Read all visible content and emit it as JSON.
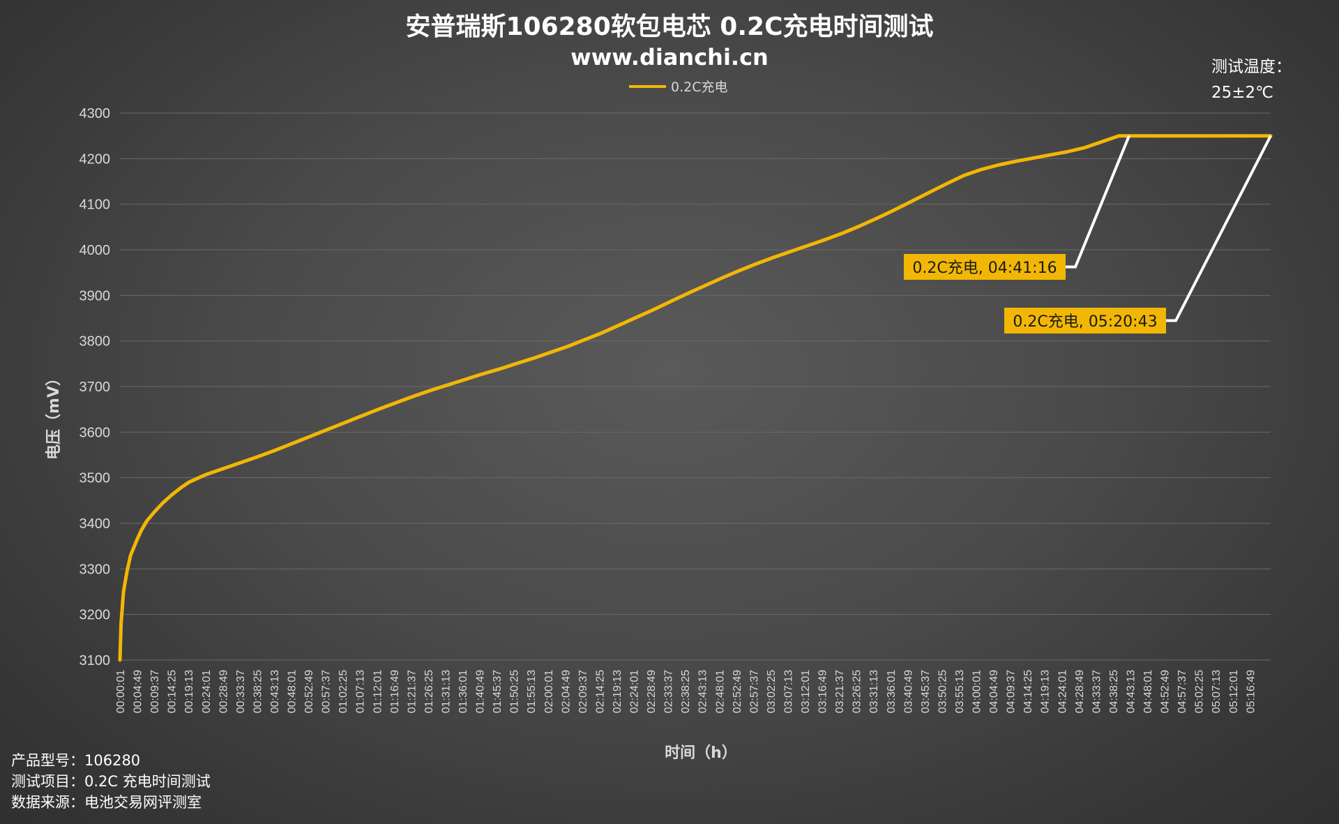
{
  "colors": {
    "series": "#f2b705",
    "leader": "#ffffff",
    "grid": "#6a6a6a",
    "annotation_bg": "#f2b705"
  },
  "chart_data": {
    "type": "line",
    "title": "安普瑞斯106280软包电芯 0.2C充电时间测试",
    "subtitle": "www.dianchi.cn",
    "xlabel": "时间（h）",
    "ylabel": "电压（mV）",
    "ylim": [
      3100,
      4300
    ],
    "yticks": [
      3100,
      3200,
      3300,
      3400,
      3500,
      3600,
      3700,
      3800,
      3900,
      4000,
      4100,
      4200,
      4300
    ],
    "grid": true,
    "legend_position": "top-center",
    "x_tick_labels": [
      "00:00:01",
      "00:04:49",
      "00:09:37",
      "00:14:25",
      "00:19:13",
      "00:24:01",
      "00:28:49",
      "00:33:37",
      "00:38:25",
      "00:43:13",
      "00:48:01",
      "00:52:49",
      "00:57:37",
      "01:02:25",
      "01:07:13",
      "01:12:01",
      "01:16:49",
      "01:21:37",
      "01:26:25",
      "01:31:13",
      "01:36:01",
      "01:40:49",
      "01:45:37",
      "01:50:25",
      "01:55:13",
      "02:00:01",
      "02:04:49",
      "02:09:37",
      "02:14:25",
      "02:19:13",
      "02:24:01",
      "02:28:49",
      "02:33:37",
      "02:38:25",
      "02:43:13",
      "02:48:01",
      "02:52:49",
      "02:57:37",
      "03:02:25",
      "03:07:13",
      "03:12:01",
      "03:16:49",
      "03:21:37",
      "03:26:25",
      "03:31:13",
      "03:36:01",
      "03:40:49",
      "03:45:37",
      "03:50:25",
      "03:55:13",
      "04:00:01",
      "04:04:49",
      "04:09:37",
      "04:14:25",
      "04:19:13",
      "04:24:01",
      "04:28:49",
      "04:33:37",
      "04:38:25",
      "04:43:13",
      "04:48:01",
      "04:52:49",
      "04:57:37",
      "05:02:25",
      "05:07:13",
      "05:12:01",
      "05:16:49"
    ],
    "series": [
      {
        "name": "0.2C充电",
        "points": [
          [
            "00:00:01",
            3100
          ],
          [
            "00:00:20",
            3180
          ],
          [
            "00:01:00",
            3250
          ],
          [
            "00:02:00",
            3295
          ],
          [
            "00:03:00",
            3330
          ],
          [
            "00:04:49",
            3365
          ],
          [
            "00:06:00",
            3385
          ],
          [
            "00:07:30",
            3405
          ],
          [
            "00:09:37",
            3425
          ],
          [
            "00:12:00",
            3445
          ],
          [
            "00:14:25",
            3462
          ],
          [
            "00:17:00",
            3478
          ],
          [
            "00:19:13",
            3490
          ],
          [
            "00:22:00",
            3500
          ],
          [
            "00:24:01",
            3507
          ],
          [
            "00:28:49",
            3520
          ],
          [
            "00:33:37",
            3533
          ],
          [
            "00:38:25",
            3546
          ],
          [
            "00:43:13",
            3560
          ],
          [
            "00:48:01",
            3575
          ],
          [
            "00:52:49",
            3590
          ],
          [
            "00:57:37",
            3605
          ],
          [
            "01:02:25",
            3620
          ],
          [
            "01:07:13",
            3635
          ],
          [
            "01:12:01",
            3650
          ],
          [
            "01:16:49",
            3664
          ],
          [
            "01:21:37",
            3678
          ],
          [
            "01:26:25",
            3691
          ],
          [
            "01:31:13",
            3703
          ],
          [
            "01:36:01",
            3715
          ],
          [
            "01:40:49",
            3727
          ],
          [
            "01:45:37",
            3738
          ],
          [
            "01:50:25",
            3750
          ],
          [
            "01:55:13",
            3762
          ],
          [
            "02:00:01",
            3775
          ],
          [
            "02:04:49",
            3788
          ],
          [
            "02:09:37",
            3803
          ],
          [
            "02:14:25",
            3818
          ],
          [
            "02:19:13",
            3835
          ],
          [
            "02:24:01",
            3852
          ],
          [
            "02:28:49",
            3869
          ],
          [
            "02:33:37",
            3887
          ],
          [
            "02:38:25",
            3905
          ],
          [
            "02:43:13",
            3922
          ],
          [
            "02:48:01",
            3939
          ],
          [
            "02:52:49",
            3955
          ],
          [
            "02:57:37",
            3970
          ],
          [
            "03:02:25",
            3984
          ],
          [
            "03:07:13",
            3997
          ],
          [
            "03:12:01",
            4010
          ],
          [
            "03:16:49",
            4023
          ],
          [
            "03:21:37",
            4037
          ],
          [
            "03:26:25",
            4053
          ],
          [
            "03:31:13",
            4070
          ],
          [
            "03:36:01",
            4088
          ],
          [
            "03:40:49",
            4107
          ],
          [
            "03:45:37",
            4126
          ],
          [
            "03:50:25",
            4145
          ],
          [
            "03:55:13",
            4163
          ],
          [
            "04:00:01",
            4176
          ],
          [
            "04:04:49",
            4186
          ],
          [
            "04:09:37",
            4194
          ],
          [
            "04:14:25",
            4201
          ],
          [
            "04:19:13",
            4208
          ],
          [
            "04:24:01",
            4215
          ],
          [
            "04:28:49",
            4224
          ],
          [
            "04:33:37",
            4237
          ],
          [
            "04:38:25",
            4250
          ],
          [
            "04:41:16",
            4250
          ],
          [
            "04:48:01",
            4250
          ],
          [
            "04:57:37",
            4250
          ],
          [
            "05:07:13",
            4250
          ],
          [
            "05:16:49",
            4250
          ],
          [
            "05:20:43",
            4250
          ]
        ]
      }
    ],
    "annotations": [
      {
        "label": "0.2C充电, 04:41:16",
        "x": "04:41:16",
        "y": 4250
      },
      {
        "label": "0.2C充电, 05:20:43",
        "x": "05:20:43",
        "y": 4250
      }
    ]
  },
  "legend": {
    "label": "0.2C充电"
  },
  "temperature_note": {
    "line1": "测试温度：",
    "line2": "25±2℃"
  },
  "footer": {
    "line1": "产品型号：106280",
    "line2": "测试项目：0.2C 充电时间测试",
    "line3": "数据来源：电池交易网评测室"
  }
}
